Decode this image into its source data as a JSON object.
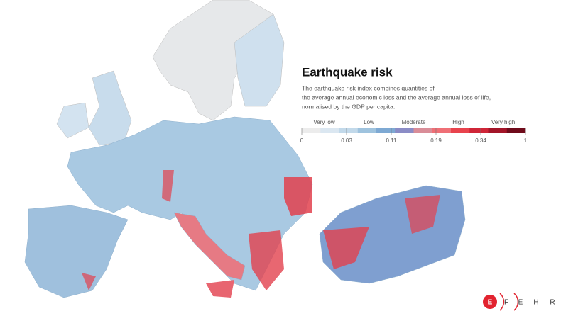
{
  "title": "Earthquake risk",
  "description": [
    "The earthquake risk index combines quantities of",
    "the average annual economic loss and the average annual loss of life,",
    "normalised by the GDP per capita."
  ],
  "legend": {
    "classes": [
      "Very low",
      "Low",
      "Moderate",
      "High",
      "Very high"
    ],
    "ticks": [
      0,
      0.03,
      0.11,
      0.19,
      0.34,
      1
    ],
    "colors": [
      "#ececec",
      "#dbe7f1",
      "#c2d9ea",
      "#9fc3de",
      "#7ea9d3",
      "#8b8cc6",
      "#d98d98",
      "#ef6f76",
      "#e8434d",
      "#cf2537",
      "#a31529",
      "#6f0b1b"
    ]
  },
  "logo": {
    "letters": [
      "E",
      "F",
      "E",
      "H",
      "R"
    ]
  }
}
